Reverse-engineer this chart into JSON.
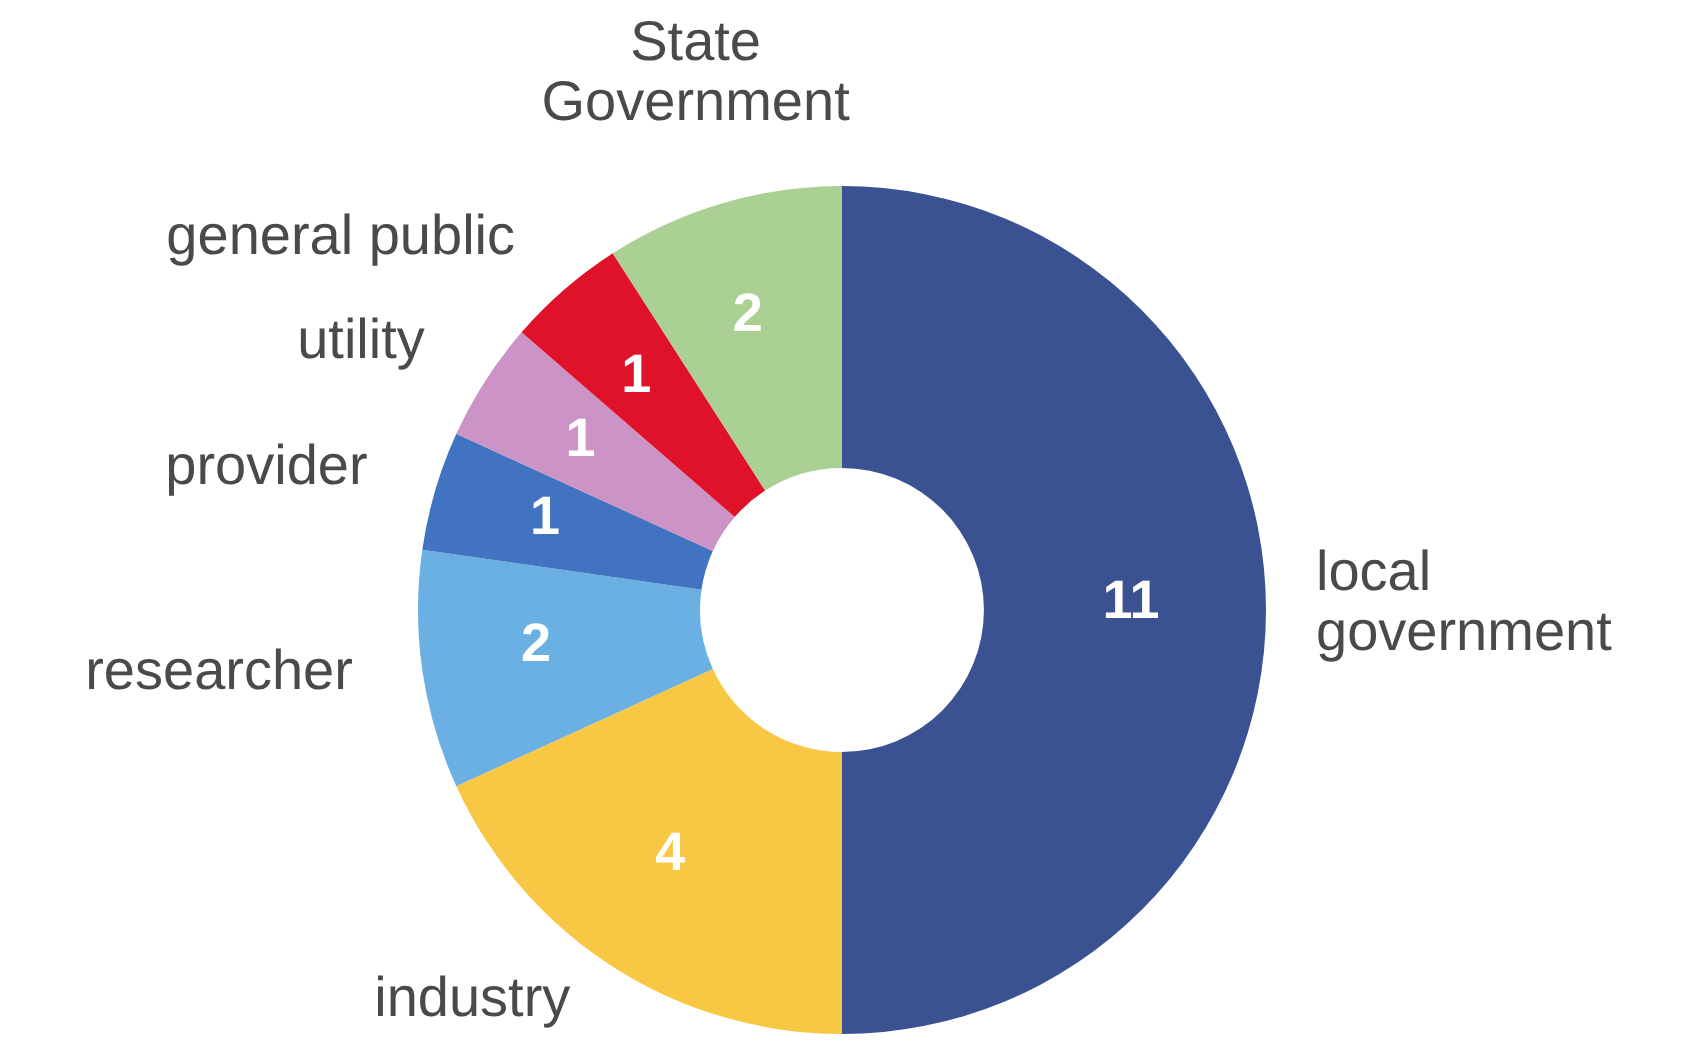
{
  "chart_data": {
    "type": "donut",
    "categories": [
      "local government",
      "industry",
      "researcher",
      "provider",
      "utility",
      "general public",
      "State Government"
    ],
    "values": [
      11,
      4,
      2,
      1,
      1,
      1,
      2
    ],
    "colors": [
      "#3a5192",
      "#f8c744",
      "#6ab0e2",
      "#4173c0",
      "#cc93c6",
      "#e0122a",
      "#abd094"
    ],
    "data_labels": true
  }
}
